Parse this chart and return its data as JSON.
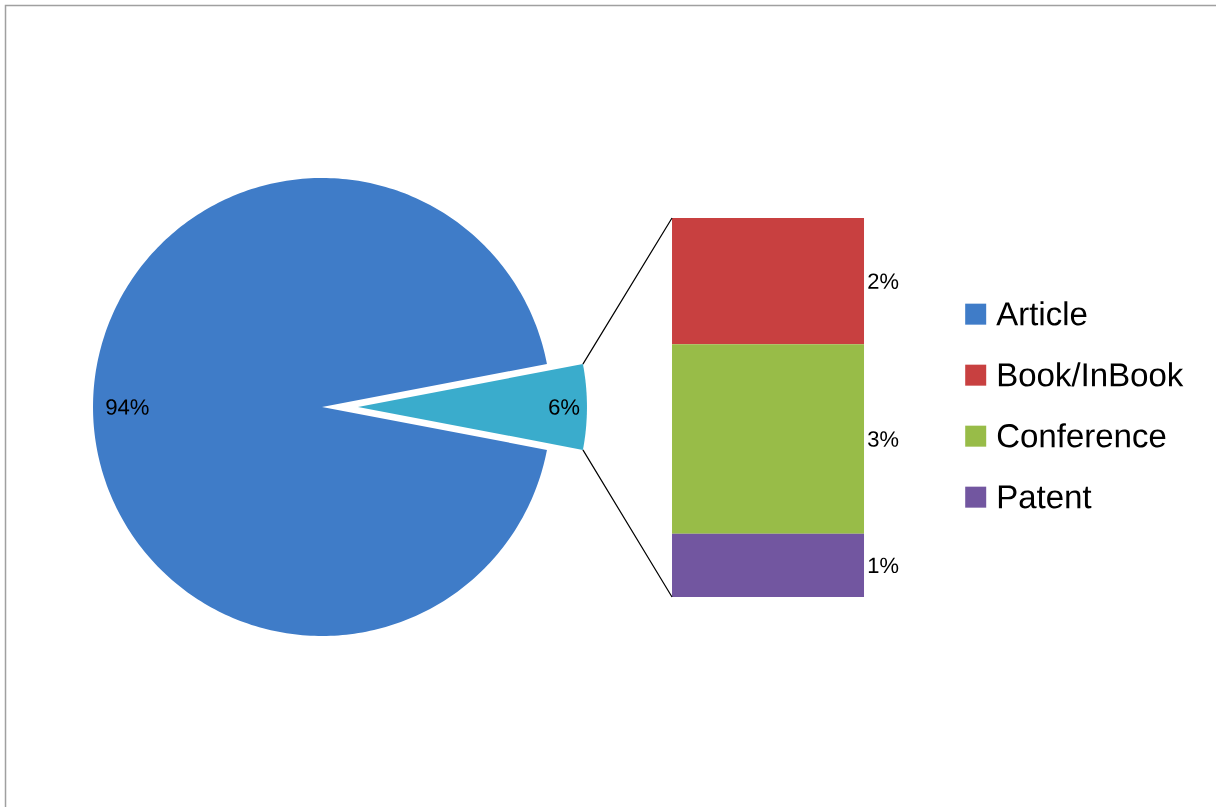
{
  "chart_data": [
    {
      "type": "pie",
      "categories": [
        "Article",
        null
      ],
      "values": [
        94,
        6
      ],
      "colors": [
        "#3f7cc8",
        "#3aaccc"
      ],
      "value_labels": [
        "94%",
        "6%"
      ],
      "legend": "right"
    },
    {
      "type": "bar",
      "stacked": true,
      "categories": [
        null
      ],
      "series": [
        {
          "name": "Patent",
          "color": "#7256a0",
          "values": [
            1
          ],
          "value_labels": [
            "1%"
          ]
        },
        {
          "name": "Conference",
          "color": "#98bc48",
          "values": [
            3
          ],
          "value_labels": [
            "3%"
          ]
        },
        {
          "name": "Book/InBook",
          "color": "#c84040",
          "values": [
            2
          ],
          "value_labels": [
            "2%"
          ]
        }
      ],
      "legend": "right"
    }
  ]
}
